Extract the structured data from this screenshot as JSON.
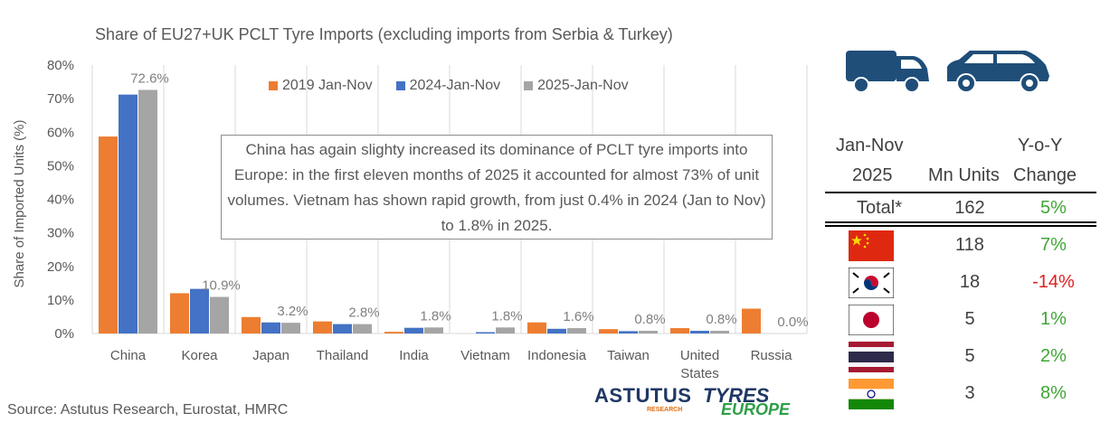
{
  "title": "Share of EU27+UK PCLT Tyre Imports (excluding imports from Serbia & Turkey)",
  "source": "Source: Astutus Research, Eurostat, HMRC",
  "callout": "China has again slighty increased its dominance of PCLT tyre imports into Europe: in the first eleven months of 2025 it accounted for almost 73% of unit volumes. Vietnam has shown rapid growth, from just 0.4% in 2024 (Jan to Nov) to 1.8% in 2025.",
  "logos": {
    "astutus": "ASTUTUS",
    "astutus_sub": "RESEARCH",
    "tyres": "TYRES",
    "europe": "EUROPE"
  },
  "colors": {
    "s2019": "#ed7d31",
    "s2024": "#4472c4",
    "s2025": "#a5a5a5",
    "positive": "#3fa535",
    "negative": "#e02020"
  },
  "chart_data": {
    "type": "bar",
    "title": "Share of EU27+UK PCLT Tyre Imports (excluding imports from Serbia & Turkey)",
    "ylabel": "Share of Imported Units (%)",
    "xlabel": "",
    "ylim": [
      0,
      80
    ],
    "yticks": [
      "0%",
      "10%",
      "20%",
      "30%",
      "40%",
      "50%",
      "60%",
      "70%",
      "80%"
    ],
    "categories": [
      "China",
      "Korea",
      "Japan",
      "Thailand",
      "India",
      "Vietnam",
      "Indonesia",
      "Taiwan",
      "United States",
      "Russia"
    ],
    "series": [
      {
        "name": "2019 Jan-Nov",
        "values": [
          58.7,
          12.0,
          4.9,
          3.6,
          0.5,
          0.0,
          3.3,
          1.3,
          1.6,
          7.4
        ]
      },
      {
        "name": "2024-Jan-Nov",
        "values": [
          71.2,
          13.3,
          3.3,
          2.8,
          1.7,
          0.4,
          1.4,
          0.7,
          0.8,
          0.0
        ]
      },
      {
        "name": "2025-Jan-Nov",
        "values": [
          72.6,
          10.9,
          3.2,
          2.8,
          1.8,
          1.8,
          1.6,
          0.8,
          0.8,
          0.0
        ]
      }
    ],
    "data_labels": [
      "72.6%",
      "10.9%",
      "3.2%",
      "2.8%",
      "1.8%",
      "1.8%",
      "1.6%",
      "0.8%",
      "0.8%",
      "0.0%"
    ],
    "legend": "top-center",
    "grid": "vertical"
  },
  "table": {
    "header_period_line1": "Jan-Nov",
    "header_period_line2": "2025",
    "header_units": "Mn Units",
    "header_change_line1": "Y-o-Y",
    "header_change_line2": "Change",
    "total": {
      "label": "Total*",
      "units": "162",
      "change": "5%"
    },
    "rows": [
      {
        "flag": "china-flag",
        "units": "118",
        "change": "7%"
      },
      {
        "flag": "korea-flag",
        "units": "18",
        "change": "-14%"
      },
      {
        "flag": "japan-flag",
        "units": "5",
        "change": "1%"
      },
      {
        "flag": "thailand-flag",
        "units": "5",
        "change": "2%"
      },
      {
        "flag": "india-flag",
        "units": "3",
        "change": "8%"
      }
    ]
  }
}
